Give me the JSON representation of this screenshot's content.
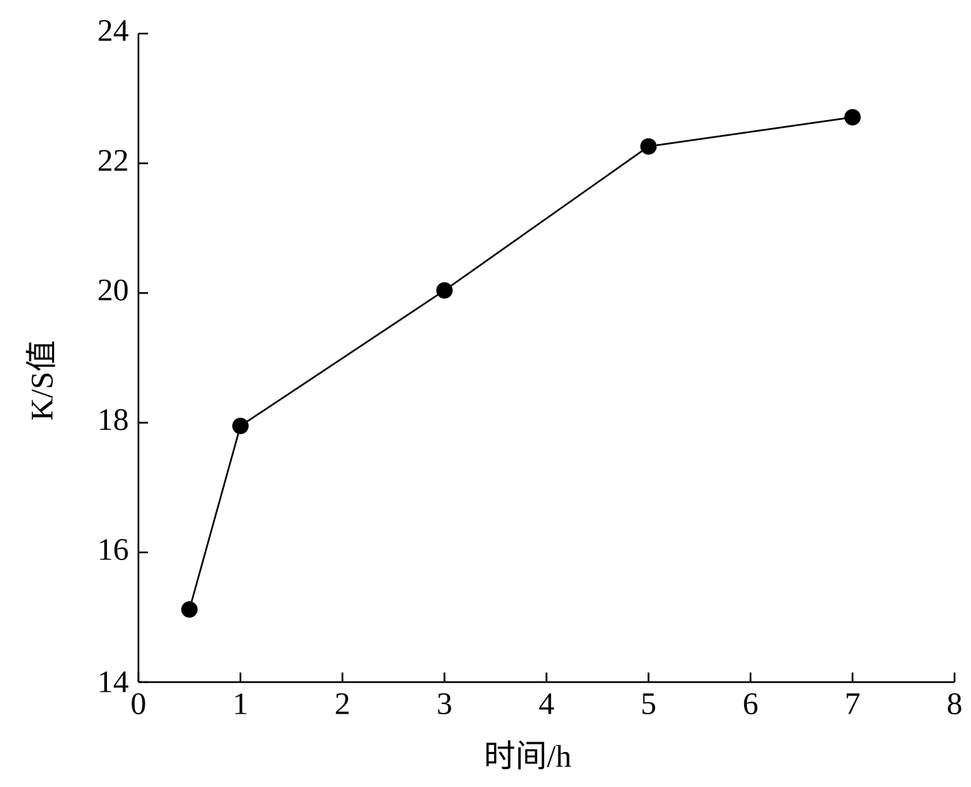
{
  "chart_data": {
    "type": "line",
    "x_label": "时间/h",
    "y_label": "K/S值",
    "x": [
      0.5,
      1,
      3,
      5,
      7
    ],
    "series": [
      {
        "color": "#000000",
        "values": [
          15.12,
          17.95,
          20.04,
          22.26,
          22.71
        ]
      }
    ],
    "xlim": [
      0,
      8
    ],
    "xticks": [
      0,
      1,
      2,
      3,
      4,
      5,
      6,
      7,
      8
    ],
    "ylim": [
      14,
      24
    ],
    "yticks": [
      14,
      16,
      18,
      20,
      22,
      24
    ]
  }
}
